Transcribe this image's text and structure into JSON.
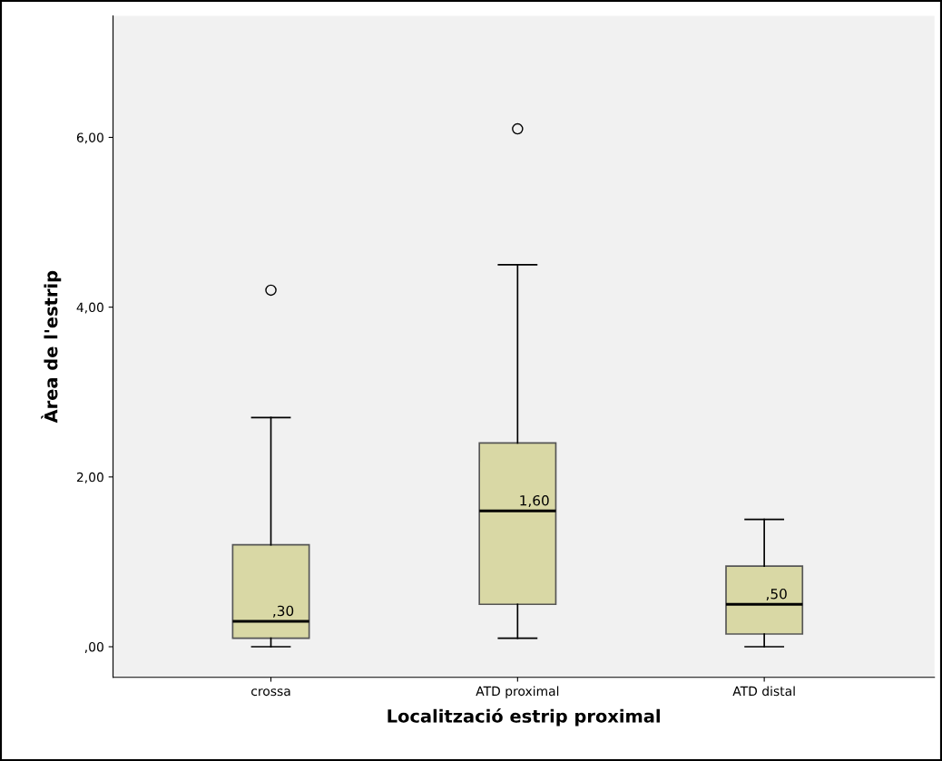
{
  "chart_data": {
    "type": "box",
    "categories": [
      "crossa",
      "ATD proximal",
      "ATD distal"
    ],
    "xlabel": "Localització estrip proximal",
    "ylabel": "Àrea de l'estrip",
    "boxes": [
      {
        "low": 0,
        "q1": 0.1,
        "median": 0.3,
        "q3": 1.2,
        "high": 2.7,
        "outliers": [
          4.2
        ]
      },
      {
        "low": 0.1,
        "q1": 0.5,
        "median": 1.6,
        "q3": 2.4,
        "high": 4.5,
        "outliers": [
          6.1
        ]
      },
      {
        "low": 0,
        "q1": 0.15,
        "median": 0.5,
        "q3": 0.95,
        "high": 1.5
      }
    ],
    "color": "#d9d8a5",
    "ylim": [
      -0.36,
      7.43
    ],
    "yticks": [
      {
        "value": 0,
        "label": ",00"
      },
      {
        "value": 2,
        "label": "2,00"
      },
      {
        "value": 4,
        "label": "4,00"
      },
      {
        "value": 6,
        "label": "6,00"
      }
    ],
    "annotations": [
      {
        "text": ",30",
        "x": "crossa",
        "y": 0.3
      },
      {
        "text": "1,60",
        "x": "ATD proximal",
        "y": 1.6
      },
      {
        "text": ",50",
        "x": "ATD distal",
        "y": 0.5
      }
    ],
    "grid": false
  }
}
